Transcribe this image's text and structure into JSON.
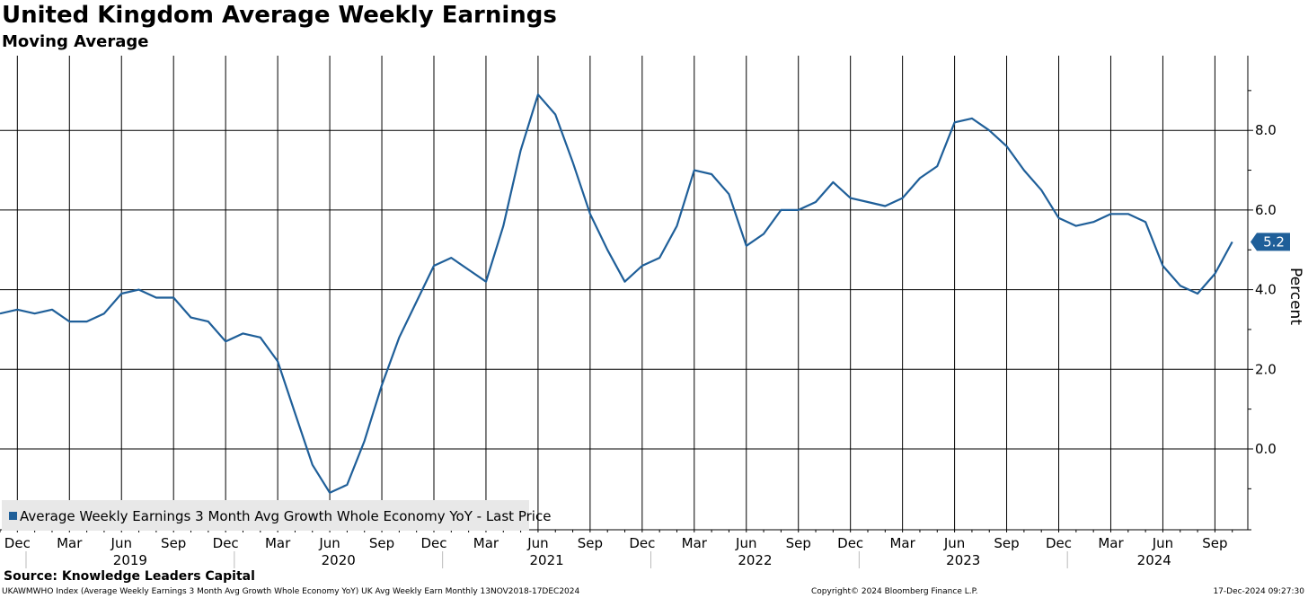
{
  "header": {
    "title": "United Kingdom Average Weekly Earnings",
    "subtitle": "Moving Average"
  },
  "footer": {
    "source": "Source: Knowledge Leaders Capital",
    "ticker_line": "UKAWMWHO Index (Average Weekly Earnings 3 Month Avg Growth Whole Economy YoY) UK Avg Weekly Earn  Monthly 13NOV2018-17DEC2024",
    "copyright": "Copyright© 2024 Bloomberg Finance L.P.",
    "timestamp": "17-Dec-2024 09:27:30"
  },
  "colors": {
    "series": "#1f5f99",
    "grid": "#000000",
    "label_bg": "#1f5f99",
    "legend_bg": "#e8e8e8"
  },
  "chart_data": {
    "type": "line",
    "title": "United Kingdom Average Weekly Earnings",
    "subtitle": "Moving Average",
    "ylabel": "Percent",
    "ylim": [
      -2.0,
      9.5
    ],
    "y_ticks": [
      "0.0",
      "2.0",
      "4.0",
      "6.0",
      "8.0"
    ],
    "x_month_labels": [
      "Dec",
      "Mar",
      "Jun",
      "Sep",
      "Dec",
      "Mar",
      "Jun",
      "Sep",
      "Dec",
      "Mar",
      "Jun",
      "Sep",
      "Dec",
      "Mar",
      "Jun",
      "Sep",
      "Dec",
      "Mar",
      "Jun",
      "Sep",
      "Dec",
      "Mar",
      "Jun",
      "Sep"
    ],
    "x_year_labels": [
      "2019",
      "2020",
      "2021",
      "2022",
      "2023",
      "2024"
    ],
    "x_start": "2018-11",
    "x_end": "2024-10",
    "x": [
      "2018-11",
      "2018-12",
      "2019-01",
      "2019-02",
      "2019-03",
      "2019-04",
      "2019-05",
      "2019-06",
      "2019-07",
      "2019-08",
      "2019-09",
      "2019-10",
      "2019-11",
      "2019-12",
      "2020-01",
      "2020-02",
      "2020-03",
      "2020-04",
      "2020-05",
      "2020-06",
      "2020-07",
      "2020-08",
      "2020-09",
      "2020-10",
      "2020-11",
      "2020-12",
      "2021-01",
      "2021-02",
      "2021-03",
      "2021-04",
      "2021-05",
      "2021-06",
      "2021-07",
      "2021-08",
      "2021-09",
      "2021-10",
      "2021-11",
      "2021-12",
      "2022-01",
      "2022-02",
      "2022-03",
      "2022-04",
      "2022-05",
      "2022-06",
      "2022-07",
      "2022-08",
      "2022-09",
      "2022-10",
      "2022-11",
      "2022-12",
      "2023-01",
      "2023-02",
      "2023-03",
      "2023-04",
      "2023-05",
      "2023-06",
      "2023-07",
      "2023-08",
      "2023-09",
      "2023-10",
      "2023-11",
      "2023-12",
      "2024-01",
      "2024-02",
      "2024-03",
      "2024-04",
      "2024-05",
      "2024-06",
      "2024-07",
      "2024-08",
      "2024-09",
      "2024-10"
    ],
    "series": [
      {
        "name": "Average Weekly Earnings 3 Month Avg Growth Whole Economy YoY - Last Price",
        "values": [
          3.4,
          3.5,
          3.4,
          3.5,
          3.2,
          3.2,
          3.4,
          3.9,
          4.0,
          3.8,
          3.8,
          3.3,
          3.2,
          2.7,
          2.9,
          2.8,
          2.2,
          0.9,
          -0.4,
          -1.1,
          -0.9,
          0.2,
          1.6,
          2.8,
          3.7,
          4.6,
          4.8,
          4.5,
          4.2,
          5.6,
          7.5,
          8.9,
          8.4,
          7.2,
          5.9,
          5.0,
          4.2,
          4.6,
          4.8,
          5.6,
          7.0,
          6.9,
          6.4,
          5.1,
          5.4,
          6.0,
          6.0,
          6.2,
          6.7,
          6.3,
          6.2,
          6.1,
          6.3,
          6.8,
          7.1,
          8.2,
          8.3,
          8.0,
          7.6,
          7.0,
          6.5,
          5.8,
          5.6,
          5.7,
          5.9,
          5.9,
          5.7,
          4.6,
          4.1,
          3.9,
          4.4,
          5.2
        ]
      }
    ],
    "last_value_label": "5.2",
    "legend": {
      "placement": "bottom-left",
      "entries": [
        "Average Weekly Earnings 3 Month Avg Growth Whole Economy YoY - Last Price"
      ]
    },
    "grid": true
  }
}
